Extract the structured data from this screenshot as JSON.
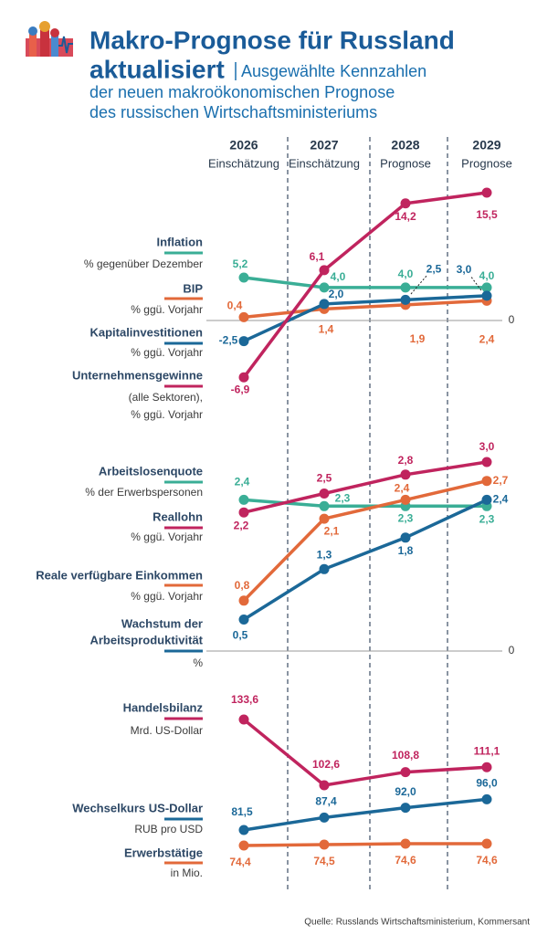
{
  "header": {
    "title": "Makro-Prognose für Russland",
    "title_2": "aktualisiert",
    "subtitle": [
      "Ausgewählte Kennzahlen",
      "der neuen makroökonomischen Prognose",
      "des russischen Wirtschaftsministeriums"
    ]
  },
  "chart_data": [
    {
      "type": "line",
      "categories": [
        "2026",
        "2027",
        "2028",
        "2029"
      ],
      "category_notes": [
        "Einschätzung",
        "Einschätzung",
        "Prognose",
        "Prognose"
      ],
      "ylim": [
        -7,
        16
      ],
      "yticks": [
        0
      ],
      "series": [
        {
          "name": "Inflation",
          "unit": [
            "% gegenüber Dezember"
          ],
          "color": "#3aae96",
          "values": [
            5.2,
            4.0,
            4.0,
            4.0
          ],
          "value_labels": [
            "5,2",
            "4,0",
            "4,0",
            "4,0"
          ]
        },
        {
          "name": "BIP",
          "unit": [
            "% ggü. Vorjahr"
          ],
          "color": "#e2693a",
          "values": [
            0.4,
            1.4,
            1.9,
            2.4
          ],
          "value_labels": [
            "0,4",
            "1,4",
            "1,9",
            "2,4"
          ]
        },
        {
          "name": "Kapitalinvestitionen",
          "unit": [
            "% ggü. Vorjahr"
          ],
          "color": "#1b6898",
          "values": [
            -2.5,
            2.0,
            2.5,
            3.0
          ],
          "value_labels": [
            "-2,5",
            "2,0",
            "2,5",
            "3,0"
          ]
        },
        {
          "name": "Unternehmensgewinne",
          "unit": [
            "(alle Sektoren),",
            "% ggü. Vorjahr"
          ],
          "color": "#c0245e",
          "values": [
            -6.9,
            6.1,
            14.2,
            15.5
          ],
          "value_labels": [
            "-6,9",
            "6,1",
            "14,2",
            "15,5"
          ]
        }
      ]
    },
    {
      "type": "line",
      "ylim": [
        0,
        3.1
      ],
      "yticks": [
        0
      ],
      "series": [
        {
          "name": "Arbeitslosenquote",
          "unit": [
            "% der Erwerbspersonen"
          ],
          "color": "#3aae96",
          "values": [
            2.4,
            2.3,
            2.3,
            2.3
          ],
          "value_labels": [
            "2,4",
            "2,3",
            "2,3",
            "2,3"
          ]
        },
        {
          "name": "Reallohn",
          "unit": [
            "% ggü. Vorjahr"
          ],
          "color": "#c0245e",
          "values": [
            2.2,
            2.5,
            2.8,
            3.0
          ],
          "value_labels": [
            "2,2",
            "2,5",
            "2,8",
            "3,0"
          ]
        },
        {
          "name": "Reale verfügbare Einkommen",
          "unit": [
            "% ggü. Vorjahr"
          ],
          "color": "#e2693a",
          "values": [
            0.8,
            2.1,
            2.4,
            2.7
          ],
          "value_labels": [
            "0,8",
            "2,1",
            "2,4",
            "2,7"
          ]
        },
        {
          "name": [
            "Wachstum der",
            "Arbeitsproduktivität"
          ],
          "unit": [
            "%"
          ],
          "color": "#1b6898",
          "values": [
            0.5,
            1.3,
            1.8,
            2.4
          ],
          "value_labels": [
            "0,5",
            "1,3",
            "1,8",
            "2,4"
          ]
        }
      ]
    },
    {
      "type": "line",
      "series": [
        {
          "name": "Handelsbilanz",
          "unit": [
            "Mrd. US-Dollar"
          ],
          "color": "#c0245e",
          "ylim": [
            100,
            135
          ],
          "values": [
            133.6,
            102.6,
            108.8,
            111.1
          ],
          "value_labels": [
            "133,6",
            "102,6",
            "108,8",
            "111,1"
          ]
        },
        {
          "name": "Wechselkurs US-Dollar",
          "unit": [
            "RUB pro USD"
          ],
          "color": "#1b6898",
          "ylim": [
            80,
            100
          ],
          "values": [
            81.5,
            87.4,
            92.0,
            96.0
          ],
          "value_labels": [
            "81,5",
            "87,4",
            "92,0",
            "96,0"
          ]
        },
        {
          "name": "Erwerbstätige",
          "unit": [
            "in Mio."
          ],
          "color": "#e2693a",
          "ylim": [
            74,
            75
          ],
          "values": [
            74.4,
            74.5,
            74.6,
            74.6
          ],
          "value_labels": [
            "74,4",
            "74,5",
            "74,6",
            "74,6"
          ]
        }
      ]
    }
  ],
  "source": "Quelle: Russlands Wirtschaftsministerium, Kommersant"
}
